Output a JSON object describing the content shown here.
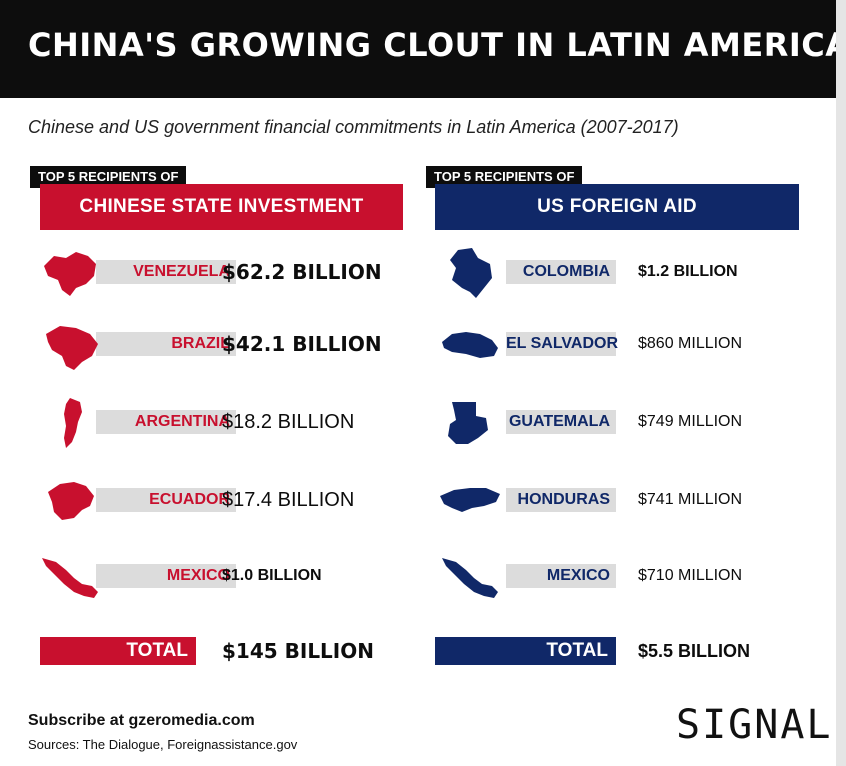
{
  "header": {
    "title": "CHINA'S GROWING CLOUT IN LATIN AMERICA"
  },
  "subtitle": "Chinese and US government financial commitments in Latin America (2007-2017)",
  "chart_data": [
    {
      "type": "table",
      "label": "TOP 5 RECIPIENTS OF",
      "title": "CHINESE STATE INVESTMENT",
      "color": "#c8102e",
      "rows": [
        {
          "country": "VENEZUELA",
          "amount": "$62.2 BILLION",
          "value_usd_billion": 62.2
        },
        {
          "country": "BRAZIL",
          "amount": "$42.1 BILLION",
          "value_usd_billion": 42.1
        },
        {
          "country": "ARGENTINA",
          "amount": "$18.2 BILLION",
          "value_usd_billion": 18.2
        },
        {
          "country": "ECUADOR",
          "amount": "$17.4 BILLION",
          "value_usd_billion": 17.4
        },
        {
          "country": "MEXICO",
          "amount": "$1.0 BILLION",
          "value_usd_billion": 1.0
        }
      ],
      "total_label": "TOTAL",
      "total_amount": "$145 BILLION",
      "total_value_usd_billion": 145
    },
    {
      "type": "table",
      "label": "TOP 5 RECIPIENTS OF",
      "title": "US FOREIGN AID",
      "color": "#102868",
      "rows": [
        {
          "country": "COLOMBIA",
          "amount": "$1.2 BILLION",
          "value_usd_billion": 1.2
        },
        {
          "country": "EL SALVADOR",
          "amount": "$860 MILLION",
          "value_usd_billion": 0.86
        },
        {
          "country": "GUATEMALA",
          "amount": "$749 MILLION",
          "value_usd_billion": 0.749
        },
        {
          "country": "HONDURAS",
          "amount": "$741 MILLION",
          "value_usd_billion": 0.741
        },
        {
          "country": "MEXICO",
          "amount": "$710 MILLION",
          "value_usd_billion": 0.71
        }
      ],
      "total_label": "TOTAL",
      "total_amount": "$5.5 BILLION",
      "total_value_usd_billion": 5.5
    }
  ],
  "footer": {
    "subscribe": "Subscribe at gzeromedia.com",
    "sources": "Sources: The Dialogue, Foreignassistance.gov"
  },
  "logo": "SIGNAL"
}
